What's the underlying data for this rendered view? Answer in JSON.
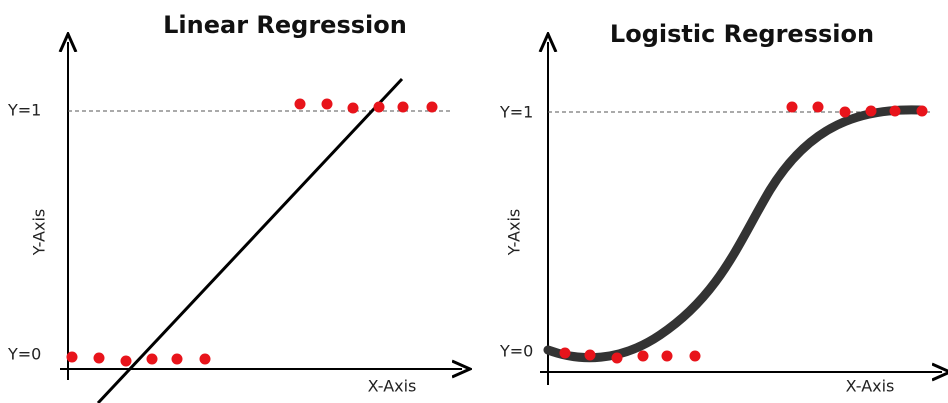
{
  "left": {
    "title": "Linear Regression",
    "y_top": "Y=1",
    "y_bottom": "Y=0",
    "y_axis": "Y-Axis",
    "x_axis": "X-Axis"
  },
  "right": {
    "title": "Logistic Regression",
    "y_top": "Y=1",
    "y_bottom": "Y=0",
    "y_axis": "Y-Axis",
    "x_axis": "X-Axis"
  }
}
